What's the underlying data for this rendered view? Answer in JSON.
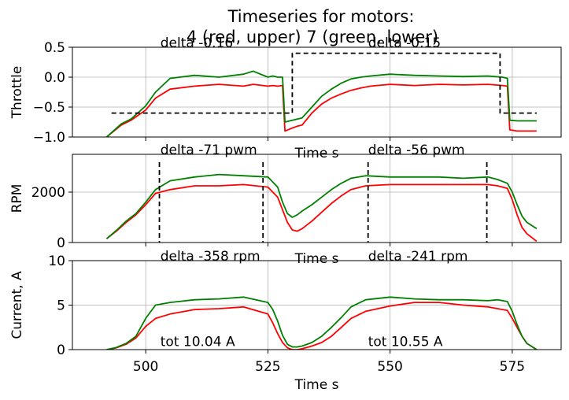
{
  "title_line1": "Timeseries for motors:",
  "title_line2": "4 (red, upper) 7 (green, lower)",
  "colors": {
    "motor4": "#ff0000",
    "motor7": "#008000",
    "reference": "#000000",
    "grid": "#b0b0b0"
  },
  "chart_data": [
    {
      "type": "line",
      "ylabel": "Throttle",
      "xlabel": "Time s",
      "xlim": [
        485,
        585
      ],
      "ylim": [
        -1.0,
        0.5
      ],
      "yticks": [
        -1.0,
        -0.5,
        0.0,
        0.5
      ],
      "yticklabels": [
        "−1.0",
        "−0.5",
        "0.0",
        "0.5"
      ],
      "annotations": [
        {
          "text": "delta -0.16",
          "x": 503,
          "y": 0.55
        },
        {
          "text": "delta -0.15",
          "x": 545.5,
          "y": 0.55
        }
      ],
      "series": [
        {
          "color": "red",
          "x": [
            492,
            495,
            497,
            500,
            502,
            505,
            510,
            515,
            520,
            522,
            525,
            526,
            527,
            528,
            528.5,
            530,
            531,
            532,
            534,
            536,
            538,
            540,
            542,
            544,
            546,
            550,
            555,
            560,
            565,
            570,
            573,
            574,
            574.5,
            576,
            580
          ],
          "y": [
            -1.0,
            -0.8,
            -0.72,
            -0.55,
            -0.35,
            -0.2,
            -0.15,
            -0.12,
            -0.15,
            -0.12,
            -0.15,
            -0.14,
            -0.15,
            -0.14,
            -0.9,
            -0.85,
            -0.82,
            -0.8,
            -0.6,
            -0.45,
            -0.35,
            -0.28,
            -0.22,
            -0.18,
            -0.15,
            -0.12,
            -0.14,
            -0.12,
            -0.13,
            -0.12,
            -0.14,
            -0.15,
            -0.88,
            -0.9,
            -0.9
          ]
        },
        {
          "color": "green",
          "x": [
            492,
            495,
            497,
            500,
            502,
            505,
            510,
            515,
            520,
            522,
            525,
            526,
            527,
            528,
            528.5,
            530,
            531,
            532,
            534,
            536,
            538,
            540,
            542,
            544,
            546,
            550,
            555,
            560,
            565,
            570,
            573,
            574,
            574.5,
            576,
            580
          ],
          "y": [
            -1.0,
            -0.78,
            -0.7,
            -0.48,
            -0.25,
            -0.02,
            0.03,
            0.0,
            0.05,
            0.1,
            0.0,
            0.02,
            0.0,
            0.0,
            -0.75,
            -0.72,
            -0.7,
            -0.68,
            -0.5,
            -0.32,
            -0.2,
            -0.1,
            -0.03,
            0.0,
            0.02,
            0.05,
            0.03,
            0.02,
            0.01,
            0.02,
            0.0,
            -0.02,
            -0.72,
            -0.73,
            -0.73
          ]
        },
        {
          "color": "black",
          "dashed": true,
          "x": [
            493,
            530,
            530,
            572.5,
            572.5,
            580
          ],
          "y": [
            -0.6,
            -0.6,
            0.4,
            0.4,
            -0.6,
            -0.6
          ]
        }
      ]
    },
    {
      "type": "line",
      "ylabel": "RPM",
      "xlabel": "Time s",
      "xlim": [
        485,
        585
      ],
      "ylim": [
        0,
        3500
      ],
      "yticks": [
        0,
        2000
      ],
      "yticklabels": [
        "0",
        "2000"
      ],
      "annotations": [
        {
          "text": "delta -71 pwm",
          "x": 503,
          "y": 3500
        },
        {
          "text": "delta -56 pwm",
          "x": 545.5,
          "y": 3500
        }
      ],
      "vlines": [
        502.8,
        524,
        545.5,
        569.8
      ],
      "series": [
        {
          "color": "red",
          "x": [
            492,
            494,
            496,
            498,
            500,
            502,
            505,
            510,
            515,
            520,
            525,
            527,
            528,
            529,
            530,
            531,
            532,
            534,
            536,
            538,
            540,
            542,
            545,
            550,
            555,
            560,
            565,
            570,
            572,
            574,
            575,
            576,
            577,
            578,
            580
          ],
          "y": [
            150,
            450,
            800,
            1100,
            1500,
            1950,
            2100,
            2250,
            2250,
            2300,
            2200,
            1800,
            1300,
            800,
            500,
            450,
            550,
            850,
            1200,
            1550,
            1850,
            2100,
            2250,
            2300,
            2300,
            2300,
            2300,
            2300,
            2250,
            2150,
            1700,
            1100,
            600,
            350,
            50
          ]
        },
        {
          "color": "green",
          "x": [
            492,
            494,
            496,
            498,
            500,
            502,
            505,
            510,
            515,
            520,
            525,
            527,
            528,
            529,
            530,
            531,
            532,
            534,
            536,
            538,
            540,
            542,
            545,
            550,
            555,
            560,
            565,
            570,
            572,
            574,
            575,
            576,
            577,
            578,
            580
          ],
          "y": [
            150,
            480,
            850,
            1150,
            1600,
            2100,
            2450,
            2600,
            2700,
            2650,
            2600,
            2200,
            1600,
            1150,
            1000,
            1100,
            1250,
            1500,
            1800,
            2100,
            2350,
            2550,
            2650,
            2600,
            2600,
            2600,
            2550,
            2600,
            2500,
            2350,
            2000,
            1500,
            1050,
            800,
            550
          ]
        }
      ]
    },
    {
      "type": "line",
      "ylabel": "Current, A",
      "xlabel": "Time s",
      "xlim": [
        485,
        585
      ],
      "ylim": [
        0,
        10
      ],
      "yticks": [
        0,
        5,
        10
      ],
      "yticklabels": [
        "0",
        "5",
        "10"
      ],
      "xticks": [
        500,
        525,
        550,
        575
      ],
      "xticklabels": [
        "500",
        "525",
        "550",
        "575"
      ],
      "annotations": [
        {
          "text": "delta -358 rpm",
          "x": 503,
          "y": 10
        },
        {
          "text": "delta -241 rpm",
          "x": 545.5,
          "y": 10
        },
        {
          "text": "tot 10.04 A",
          "x": 503,
          "y": 0.2
        },
        {
          "text": "tot 10.55 A",
          "x": 545.5,
          "y": 0.2
        }
      ],
      "series": [
        {
          "color": "red",
          "x": [
            492,
            494,
            496,
            498,
            500,
            502,
            505,
            510,
            515,
            520,
            525,
            526,
            527,
            528,
            529,
            530,
            531,
            532,
            534,
            536,
            538,
            540,
            542,
            545,
            550,
            555,
            560,
            565,
            570,
            572,
            574,
            575,
            576,
            577,
            578,
            580
          ],
          "y": [
            0.0,
            0.2,
            0.6,
            1.3,
            2.6,
            3.5,
            4.0,
            4.5,
            4.6,
            4.8,
            4.0,
            3.0,
            1.8,
            0.8,
            0.2,
            0.0,
            0.0,
            0.1,
            0.4,
            0.8,
            1.5,
            2.5,
            3.5,
            4.3,
            4.9,
            5.3,
            5.3,
            5.0,
            4.8,
            4.6,
            4.4,
            3.5,
            2.5,
            1.5,
            0.7,
            0.0
          ]
        },
        {
          "color": "green",
          "x": [
            492,
            494,
            496,
            498,
            500,
            502,
            505,
            510,
            515,
            520,
            525,
            526,
            527,
            528,
            529,
            530,
            531,
            532,
            534,
            536,
            538,
            540,
            542,
            545,
            550,
            555,
            560,
            565,
            570,
            572,
            574,
            575,
            576,
            577,
            578,
            580
          ],
          "y": [
            0.0,
            0.25,
            0.7,
            1.5,
            3.5,
            5.0,
            5.3,
            5.6,
            5.7,
            5.9,
            5.3,
            4.5,
            3.2,
            1.6,
            0.6,
            0.3,
            0.3,
            0.4,
            0.8,
            1.5,
            2.5,
            3.6,
            4.8,
            5.6,
            5.9,
            5.7,
            5.6,
            5.6,
            5.5,
            5.6,
            5.4,
            4.3,
            2.8,
            1.5,
            0.7,
            0.0
          ]
        }
      ]
    }
  ]
}
